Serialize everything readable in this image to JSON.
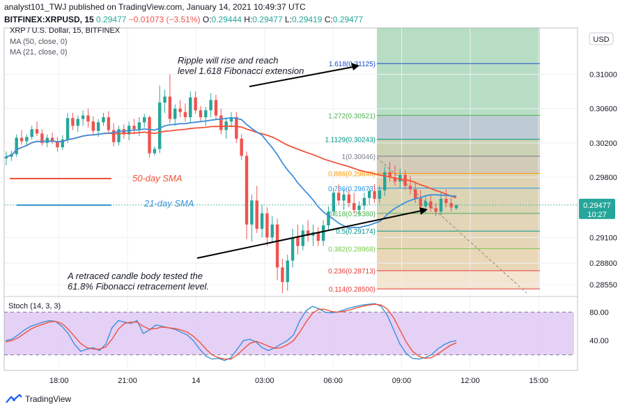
{
  "header": {
    "publisher_line": "analyst101_TWJ published on TradingView.com, January 14, 2021 10:49:37 UTC",
    "symbol": "BITFINEX:XRPUSD, 15",
    "last": "0.29477",
    "change": "−0.01073 (−3.51%)",
    "o_label": "O:",
    "o": "0.29444",
    "h_label": "H:",
    "h": "0.29477",
    "l_label": "L:",
    "l": "0.29419",
    "c_label": "C:",
    "c": "0.29477"
  },
  "legend": {
    "title": "XRP / U.S. Dollar, 15, BITFINEX",
    "ma50": "MA (50, close, 0)",
    "ma21": "MA (21, close, 0)"
  },
  "currency_button": "USD",
  "current_price": "0.29477",
  "countdown": "10:27",
  "annotations": {
    "rise_line1": "Ripple will rise and reach",
    "rise_line2": "level 1.618 Fibonacci extension",
    "retrace_line1": "A retraced candle body tested the",
    "retrace_line2": "61.8% Fibonacci retracement level.",
    "sma50": "50-day SMA",
    "sma21": "21-day SMA"
  },
  "stoch_label": "Stoch (14, 3, 3)",
  "footer_brand": "TradingView",
  "colors": {
    "up": "#26a69a",
    "down": "#ef5350",
    "ma50": "#f0533a",
    "ma21": "#3d8fd8",
    "stoch_k": "#3d8fd8",
    "stoch_d": "#f0533a",
    "stoch_bg": "#e0c8f5"
  },
  "chart_data": [
    {
      "type": "candlestick",
      "title": "XRP / U.S. Dollar, 15, BITFINEX",
      "x_ticks": [
        "18:00",
        "21:00",
        "14",
        "03:00",
        "06:00",
        "09:00",
        "12:00",
        "15:00"
      ],
      "x_tick_hours": [
        18,
        21,
        24,
        27,
        30,
        33,
        36,
        39
      ],
      "y_ticks": [
        "0.31000",
        "0.30600",
        "0.30200",
        "0.29800",
        "0.29100",
        "0.28800",
        "0.28550"
      ],
      "y_tick_values": [
        0.31,
        0.306,
        0.302,
        0.298,
        0.291,
        0.288,
        0.2855
      ],
      "ylim": [
        0.2842,
        0.3154
      ],
      "xlim_hours": [
        15.6,
        40.7
      ],
      "candles_ohlc": [
        [
          0.3002,
          0.301,
          0.2994,
          0.3004
        ],
        [
          0.3004,
          0.3011,
          0.2999,
          0.3007
        ],
        [
          0.3007,
          0.303,
          0.3004,
          0.3026
        ],
        [
          0.3026,
          0.3035,
          0.3018,
          0.3022
        ],
        [
          0.3022,
          0.303,
          0.3016,
          0.3027
        ],
        [
          0.3027,
          0.304,
          0.3024,
          0.3036
        ],
        [
          0.3036,
          0.3045,
          0.3028,
          0.3031
        ],
        [
          0.3031,
          0.3036,
          0.3017,
          0.302
        ],
        [
          0.302,
          0.303,
          0.3015,
          0.3026
        ],
        [
          0.3026,
          0.3032,
          0.3019,
          0.3022
        ],
        [
          0.3022,
          0.3027,
          0.301,
          0.3015
        ],
        [
          0.3015,
          0.3029,
          0.3012,
          0.3024
        ],
        [
          0.3024,
          0.3055,
          0.302,
          0.3049
        ],
        [
          0.3049,
          0.3055,
          0.3035,
          0.304
        ],
        [
          0.304,
          0.3052,
          0.3033,
          0.3048
        ],
        [
          0.3048,
          0.3058,
          0.304,
          0.3052
        ],
        [
          0.3052,
          0.306,
          0.3038,
          0.3045
        ],
        [
          0.3045,
          0.3051,
          0.303,
          0.3034
        ],
        [
          0.3034,
          0.3048,
          0.3027,
          0.3044
        ],
        [
          0.3044,
          0.3055,
          0.304,
          0.305
        ],
        [
          0.305,
          0.3057,
          0.3032,
          0.3035
        ],
        [
          0.3035,
          0.3043,
          0.3016,
          0.3021
        ],
        [
          0.3021,
          0.304,
          0.3017,
          0.3036
        ],
        [
          0.3036,
          0.3042,
          0.3025,
          0.303
        ],
        [
          0.303,
          0.3045,
          0.3023,
          0.304
        ],
        [
          0.304,
          0.3048,
          0.303,
          0.3036
        ],
        [
          0.3036,
          0.305,
          0.3028,
          0.3044
        ],
        [
          0.3044,
          0.3054,
          0.3038,
          0.305
        ],
        [
          0.305,
          0.3052,
          0.3003,
          0.3008
        ],
        [
          0.3008,
          0.3016,
          0.3005,
          0.3013
        ],
        [
          0.3013,
          0.3087,
          0.3008,
          0.3067
        ],
        [
          0.3067,
          0.3082,
          0.3055,
          0.3074
        ],
        [
          0.3074,
          0.31,
          0.3043,
          0.3048
        ],
        [
          0.3048,
          0.3065,
          0.304,
          0.306
        ],
        [
          0.306,
          0.307,
          0.305,
          0.3056
        ],
        [
          0.3056,
          0.3066,
          0.3045,
          0.305
        ],
        [
          0.305,
          0.308,
          0.3043,
          0.3073
        ],
        [
          0.3073,
          0.308,
          0.3054,
          0.3058
        ],
        [
          0.3058,
          0.3063,
          0.3045,
          0.305
        ],
        [
          0.305,
          0.3062,
          0.304,
          0.3058
        ],
        [
          0.3058,
          0.3078,
          0.305,
          0.307
        ],
        [
          0.307,
          0.3076,
          0.3047,
          0.3052
        ],
        [
          0.3052,
          0.306,
          0.303,
          0.3035
        ],
        [
          0.3035,
          0.305,
          0.3025,
          0.3045
        ],
        [
          0.3045,
          0.3056,
          0.3038,
          0.305
        ],
        [
          0.305,
          0.3056,
          0.302,
          0.3025
        ],
        [
          0.3025,
          0.303,
          0.3,
          0.3005
        ],
        [
          0.3005,
          0.301,
          0.2908,
          0.2925
        ],
        [
          0.2925,
          0.296,
          0.2905,
          0.2953
        ],
        [
          0.2953,
          0.297,
          0.2915,
          0.292
        ],
        [
          0.292,
          0.2948,
          0.291,
          0.2938
        ],
        [
          0.2938,
          0.2945,
          0.29,
          0.291
        ],
        [
          0.291,
          0.2935,
          0.2904,
          0.2925
        ],
        [
          0.2925,
          0.2932,
          0.286,
          0.2875
        ],
        [
          0.2875,
          0.2885,
          0.2845,
          0.2858
        ],
        [
          0.2858,
          0.289,
          0.2848,
          0.2883
        ],
        [
          0.2883,
          0.292,
          0.2875,
          0.291
        ],
        [
          0.291,
          0.2925,
          0.289,
          0.29
        ],
        [
          0.29,
          0.2925,
          0.2895,
          0.2918
        ],
        [
          0.2918,
          0.293,
          0.2905,
          0.2912
        ],
        [
          0.2912,
          0.2925,
          0.29,
          0.2916
        ],
        [
          0.2916,
          0.2922,
          0.29,
          0.2906
        ],
        [
          0.2906,
          0.293,
          0.29,
          0.2924
        ],
        [
          0.2924,
          0.2946,
          0.2918,
          0.294
        ],
        [
          0.294,
          0.2968,
          0.2935,
          0.2962
        ],
        [
          0.2962,
          0.2972,
          0.2948,
          0.2953
        ],
        [
          0.2953,
          0.2966,
          0.2942,
          0.296
        ],
        [
          0.296,
          0.2966,
          0.2945,
          0.295
        ],
        [
          0.295,
          0.2962,
          0.2938,
          0.2942
        ],
        [
          0.2942,
          0.2952,
          0.2936,
          0.2947
        ],
        [
          0.2947,
          0.2962,
          0.2942,
          0.2956
        ],
        [
          0.2956,
          0.2968,
          0.2948,
          0.2964
        ],
        [
          0.2964,
          0.2972,
          0.295,
          0.2955
        ],
        [
          0.2955,
          0.297,
          0.295,
          0.2965
        ],
        [
          0.2965,
          0.2992,
          0.2958,
          0.2986
        ],
        [
          0.2986,
          0.2998,
          0.2975,
          0.298
        ],
        [
          0.298,
          0.2994,
          0.297,
          0.2975
        ],
        [
          0.2975,
          0.299,
          0.2968,
          0.2983
        ],
        [
          0.2983,
          0.2988,
          0.2965,
          0.297
        ],
        [
          0.297,
          0.2982,
          0.296,
          0.2966
        ],
        [
          0.2966,
          0.2975,
          0.295,
          0.2955
        ],
        [
          0.2955,
          0.2965,
          0.2942,
          0.2946
        ],
        [
          0.2946,
          0.2958,
          0.2938,
          0.2952
        ],
        [
          0.2952,
          0.296,
          0.294,
          0.2944
        ],
        [
          0.2944,
          0.295,
          0.2935,
          0.294
        ],
        [
          0.294,
          0.2962,
          0.2936,
          0.2955
        ],
        [
          0.2955,
          0.2966,
          0.2945,
          0.295
        ],
        [
          0.295,
          0.2956,
          0.294,
          0.2945
        ],
        [
          0.2944,
          0.2948,
          0.2942,
          0.2948
        ]
      ],
      "fibonacci": {
        "levels": [
          "1.618",
          "1.272",
          "1.1129",
          "1",
          "0.886",
          "0.786",
          "0.618",
          "0.5",
          "0.382",
          "0.236",
          "0.114"
        ],
        "prices": [
          "0.31125",
          "0.30521",
          "0.30243",
          "0.30046",
          "0.29846",
          "0.29673",
          "0.29380",
          "0.29174",
          "0.28968",
          "0.28713",
          "0.28500"
        ]
      },
      "ma50_label": "50-day SMA",
      "ma21_label": "21-day SMA"
    },
    {
      "type": "line",
      "title": "Stoch (14, 3, 3)",
      "y_ticks": [
        "80.00",
        "40.00"
      ],
      "y_tick_values": [
        80,
        40
      ],
      "ylim": [
        0,
        100
      ],
      "bands": [
        80,
        20
      ],
      "k_values": [
        40,
        42,
        48,
        55,
        60,
        63,
        66,
        68,
        67,
        60,
        50,
        35,
        25,
        28,
        30,
        26,
        35,
        58,
        68,
        66,
        64,
        68,
        50,
        55,
        62,
        60,
        58,
        56,
        52,
        48,
        40,
        28,
        18,
        14,
        15,
        12,
        16,
        28,
        40,
        42,
        38,
        30,
        26,
        30,
        35,
        40,
        48,
        68,
        82,
        88,
        85,
        80,
        79,
        80,
        83,
        86,
        88,
        90,
        91,
        92,
        88,
        75,
        55,
        35,
        22,
        15,
        14,
        16,
        20,
        28,
        34,
        38,
        40
      ],
      "d_values": [
        38,
        40,
        44,
        50,
        56,
        60,
        63,
        66,
        67,
        64,
        56,
        46,
        36,
        30,
        28,
        28,
        31,
        42,
        56,
        64,
        66,
        66,
        60,
        56,
        57,
        59,
        58,
        57,
        55,
        52,
        46,
        38,
        28,
        20,
        16,
        14,
        14,
        20,
        28,
        36,
        39,
        36,
        32,
        29,
        30,
        34,
        40,
        52,
        66,
        78,
        84,
        84,
        81,
        80,
        81,
        83,
        86,
        88,
        90,
        91,
        90,
        84,
        72,
        55,
        38,
        25,
        18,
        15,
        16,
        21,
        27,
        33,
        37
      ]
    }
  ]
}
